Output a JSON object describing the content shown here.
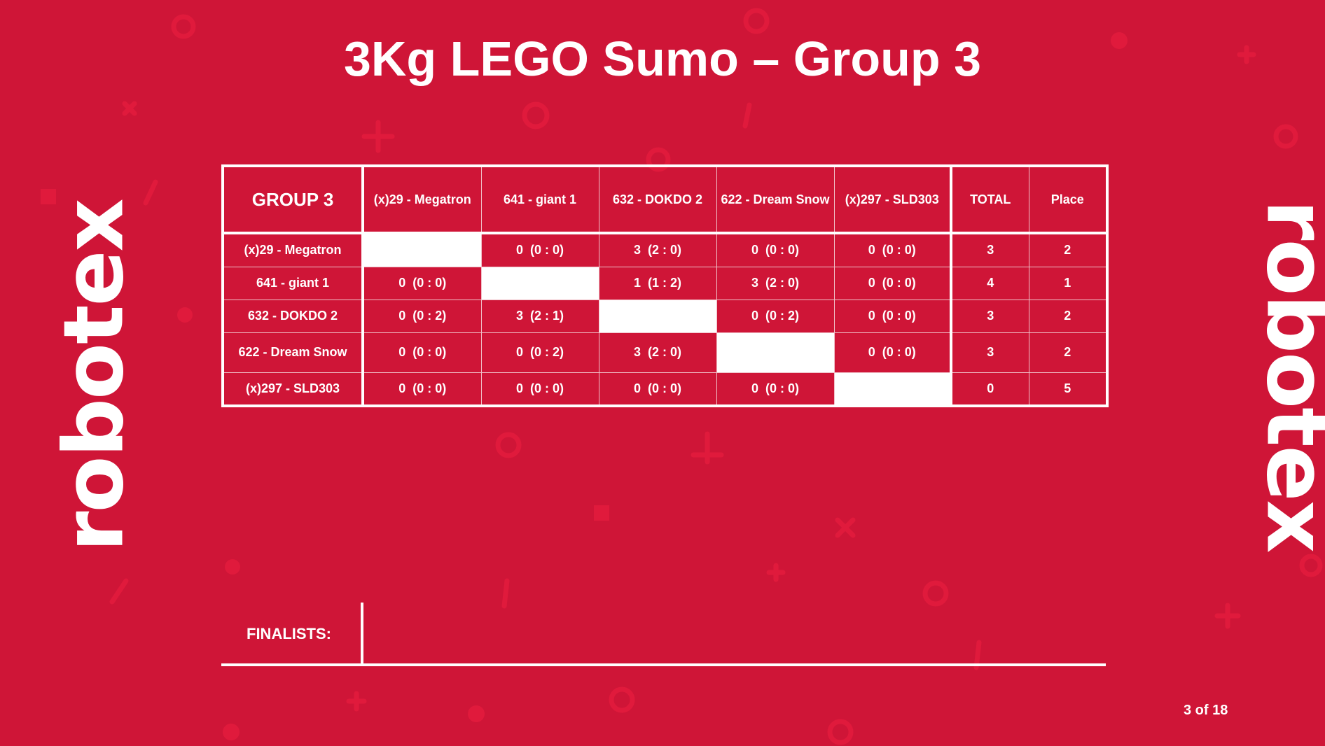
{
  "title": "3Kg LEGO Sumo – Group 3",
  "logo_text": "robotex",
  "table": {
    "corner": "GROUP 3",
    "columns": [
      "(x)29 - Megatron",
      "641 - giant 1",
      "632 - DOKDO 2",
      "622 - Dream Snow",
      "(x)297 - SLD303"
    ],
    "total_label": "TOTAL",
    "place_label": "Place",
    "rows": [
      {
        "name": "(x)29 - Megatron",
        "cells": [
          "",
          "0  (0 : 0)",
          "3  (2 : 0)",
          "0  (0 : 0)",
          "0  (0 : 0)"
        ],
        "total": "3",
        "place": "2"
      },
      {
        "name": "641 - giant 1",
        "cells": [
          "0  (0 : 0)",
          "",
          "1  (1 : 2)",
          "3  (2 : 0)",
          "0  (0 : 0)"
        ],
        "total": "4",
        "place": "1"
      },
      {
        "name": "632 - DOKDO 2",
        "cells": [
          "0  (0 : 2)",
          "3  (2 : 1)",
          "",
          "0  (0 : 2)",
          "0  (0 : 0)"
        ],
        "total": "3",
        "place": "2"
      },
      {
        "name": "622 - Dream Snow",
        "cells": [
          "0  (0 : 0)",
          "0  (0 : 2)",
          "3  (2 : 0)",
          "",
          "0  (0 : 0)"
        ],
        "total": "3",
        "place": "2"
      },
      {
        "name": "(x)297 - SLD303",
        "cells": [
          "0  (0 : 0)",
          "0  (0 : 0)",
          "0  (0 : 0)",
          "0  (0 : 0)",
          ""
        ],
        "total": "0",
        "place": "5"
      }
    ]
  },
  "finalists_label": "FINALISTS:",
  "page_indicator": "3 of 18",
  "colors": {
    "background": "#cf1537",
    "text": "#ffffff"
  }
}
